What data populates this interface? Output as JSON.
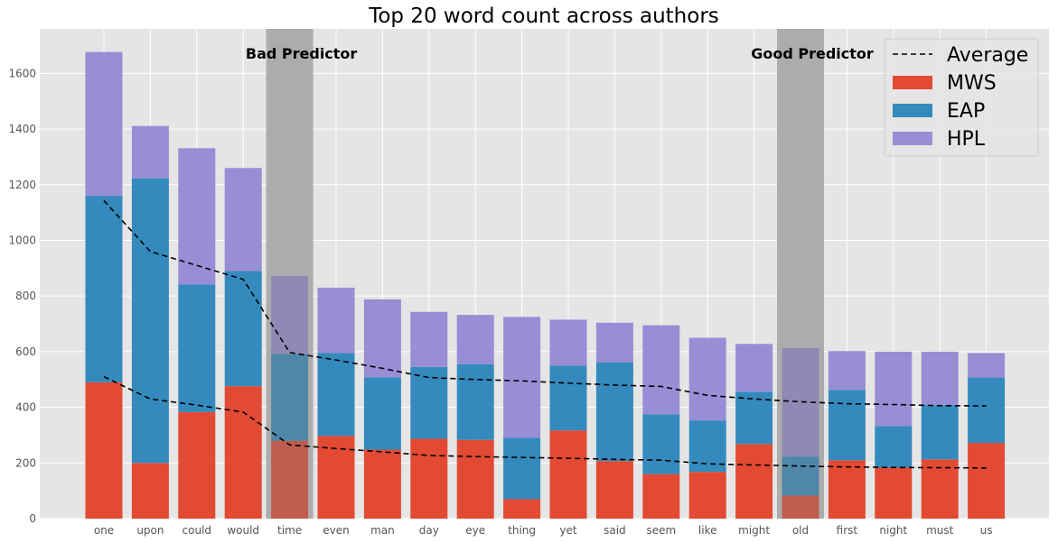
{
  "chart_data": {
    "type": "bar",
    "stacked": true,
    "title": "Top 20 word count across authors",
    "xlabel": "",
    "ylabel": "",
    "ylim": [
      0,
      1760
    ],
    "yticks": [
      0,
      200,
      400,
      600,
      800,
      1000,
      1200,
      1400,
      1600
    ],
    "grid": true,
    "legend_position": "top-right",
    "categories": [
      "one",
      "upon",
      "could",
      "would",
      "time",
      "even",
      "man",
      "day",
      "eye",
      "thing",
      "yet",
      "said",
      "seem",
      "like",
      "might",
      "old",
      "first",
      "night",
      "must",
      "us"
    ],
    "series": [
      {
        "name": "MWS",
        "color": "#e24a33",
        "values": [
          490,
          200,
          383,
          476,
          280,
          297,
          248,
          287,
          283,
          70,
          317,
          207,
          160,
          168,
          268,
          83,
          210,
          183,
          213,
          272
        ]
      },
      {
        "name": "EAP",
        "color": "#348abd",
        "values": [
          670,
          1023,
          458,
          414,
          312,
          298,
          260,
          258,
          272,
          220,
          233,
          355,
          215,
          185,
          188,
          140,
          252,
          150,
          195,
          235
        ]
      },
      {
        "name": "HPL",
        "color": "#988ed5",
        "values": [
          517,
          188,
          490,
          370,
          280,
          235,
          280,
          198,
          177,
          435,
          165,
          142,
          320,
          297,
          172,
          390,
          140,
          267,
          192,
          88
        ]
      }
    ],
    "average_lines": {
      "name": "Average",
      "color": "#000000",
      "style": "dashed",
      "upper": [
        1143,
        960,
        910,
        860,
        597,
        570,
        540,
        507,
        500,
        495,
        487,
        480,
        475,
        443,
        430,
        420,
        413,
        410,
        406,
        405
      ],
      "lower": [
        510,
        430,
        408,
        383,
        265,
        252,
        240,
        227,
        223,
        220,
        217,
        213,
        210,
        197,
        193,
        189,
        186,
        184,
        183,
        182
      ]
    },
    "highlight_bands": [
      {
        "category": "time",
        "label": "Bad Predictor"
      },
      {
        "category": "old",
        "label": "Good Predictor"
      }
    ]
  }
}
